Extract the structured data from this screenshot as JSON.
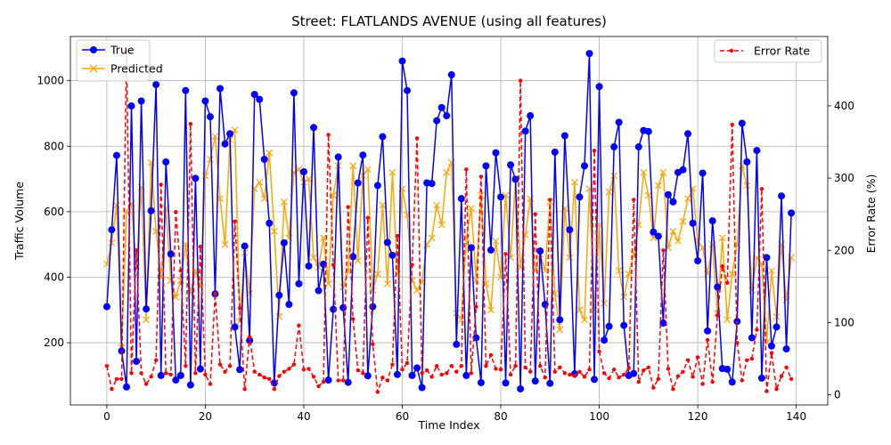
{
  "chart_data": {
    "type": "line",
    "title": "Street: FLATLANDS AVENUE (using all features)",
    "xlabel": "Time Index",
    "ylabel_left": "Traffic Volume",
    "ylabel_right": "Error Rate (%)",
    "xlim": [
      -7.4,
      146.4
    ],
    "ylim_left": [
      10,
      1135
    ],
    "ylim_right": [
      -14,
      496
    ],
    "xticks": [
      0,
      20,
      40,
      60,
      80,
      100,
      120,
      140
    ],
    "yticks_left": [
      200,
      400,
      600,
      800,
      1000
    ],
    "yticks_right": [
      0,
      100,
      200,
      300,
      400
    ],
    "grid": true,
    "legend_left": "upper-left",
    "legend_right": "upper-right",
    "series": [
      {
        "name": "True",
        "axis": "left",
        "color": "#0000ff",
        "marker": "circle",
        "values": [
          310,
          545,
          772,
          175,
          65,
          923,
          143,
          938,
          303,
          603,
          988,
          100,
          752,
          471,
          86,
          100,
          970,
          71,
          702,
          120,
          938,
          890,
          349,
          976,
          807,
          838,
          248,
          118,
          495,
          207,
          958,
          943,
          760,
          565,
          77,
          345,
          505,
          317,
          963,
          380,
          722,
          434,
          857,
          359,
          440,
          86,
          302,
          767,
          307,
          79,
          463,
          688,
          773,
          99,
          310,
          680,
          829,
          506,
          467,
          103,
          1060,
          970,
          100,
          123,
          63,
          688,
          686,
          878,
          918,
          893,
          1018,
          195,
          640,
          100,
          490,
          215,
          78,
          740,
          483,
          780,
          645,
          77,
          743,
          699,
          59,
          846,
          893,
          83,
          480,
          317,
          76,
          782,
          270,
          832,
          545,
          105,
          645,
          740,
          1083,
          88,
          982,
          208,
          250,
          798,
          873,
          253,
          100,
          106,
          798,
          848,
          845,
          538,
          525,
          260,
          652,
          630,
          720,
          728,
          838,
          565,
          450,
          718,
          236,
          572,
          370,
          121,
          119,
          80,
          265,
          870,
          752,
          215,
          787,
          92,
          460,
          190,
          248,
          648,
          181,
          596
        ]
      },
      {
        "name": "Predicted",
        "axis": "left",
        "color": "#ffa500",
        "marker": "x",
        "values": [
          440,
          505,
          620,
          185,
          600,
          625,
          433,
          675,
          270,
          750,
          540,
          400,
          610,
          390,
          340,
          390,
          500,
          350,
          420,
          370,
          710,
          760,
          830,
          640,
          500,
          820,
          850,
          265,
          475,
          350,
          670,
          690,
          640,
          780,
          540,
          280,
          630,
          520,
          720,
          730,
          690,
          700,
          460,
          430,
          520,
          380,
          650,
          740,
          370,
          420,
          740,
          450,
          710,
          730,
          360,
          410,
          620,
          380,
          720,
          410,
          670,
          590,
          390,
          360,
          385,
          500,
          520,
          620,
          560,
          720,
          750,
          290,
          270,
          520,
          610,
          390,
          650,
          380,
          300,
          510,
          400,
          650,
          460,
          700,
          430,
          530,
          640,
          420,
          470,
          420,
          630,
          350,
          240,
          610,
          460,
          690,
          300,
          270,
          670,
          300,
          560,
          320,
          660,
          710,
          420,
          340,
          410,
          470,
          560,
          720,
          650,
          520,
          680,
          720,
          490,
          540,
          510,
          570,
          640,
          670,
          510,
          490,
          410,
          500,
          290,
          520,
          270,
          410,
          500,
          740,
          680,
          360,
          460,
          440,
          200,
          420,
          280,
          500,
          330,
          460
        ]
      },
      {
        "name": "Error Rate",
        "axis": "right",
        "color": "#ff0000",
        "linestyle": "dashed",
        "marker": "dot",
        "values": [
          40,
          8,
          22,
          22,
          475,
          30,
          200,
          30,
          15,
          25,
          48,
          291,
          30,
          28,
          253,
          172,
          40,
          375,
          30,
          205,
          28,
          15,
          140,
          42,
          32,
          40,
          240,
          120,
          8,
          80,
          32,
          28,
          24,
          22,
          8,
          26,
          32,
          36,
          42,
          96,
          35,
          36,
          25,
          12,
          18,
          360,
          180,
          20,
          20,
          260,
          105,
          34,
          30,
          245,
          70,
          4,
          24,
          20,
          42,
          220,
          35,
          44,
          180,
          355,
          30,
          34,
          25,
          40,
          28,
          30,
          40,
          32,
          40,
          312,
          30,
          122,
          302,
          40,
          55,
          36,
          35,
          195,
          28,
          40,
          435,
          38,
          32,
          250,
          40,
          24,
          270,
          32,
          38,
          30,
          28,
          26,
          32,
          25,
          35,
          338,
          60,
          30,
          23,
          35,
          24,
          28,
          37,
          270,
          18,
          34,
          38,
          10,
          22,
          200,
          36,
          8,
          26,
          32,
          48,
          25,
          52,
          15,
          76,
          18,
          110,
          178,
          155,
          374,
          72,
          20,
          48,
          50,
          90,
          285,
          5,
          58,
          8,
          26,
          38,
          22
        ]
      }
    ]
  }
}
